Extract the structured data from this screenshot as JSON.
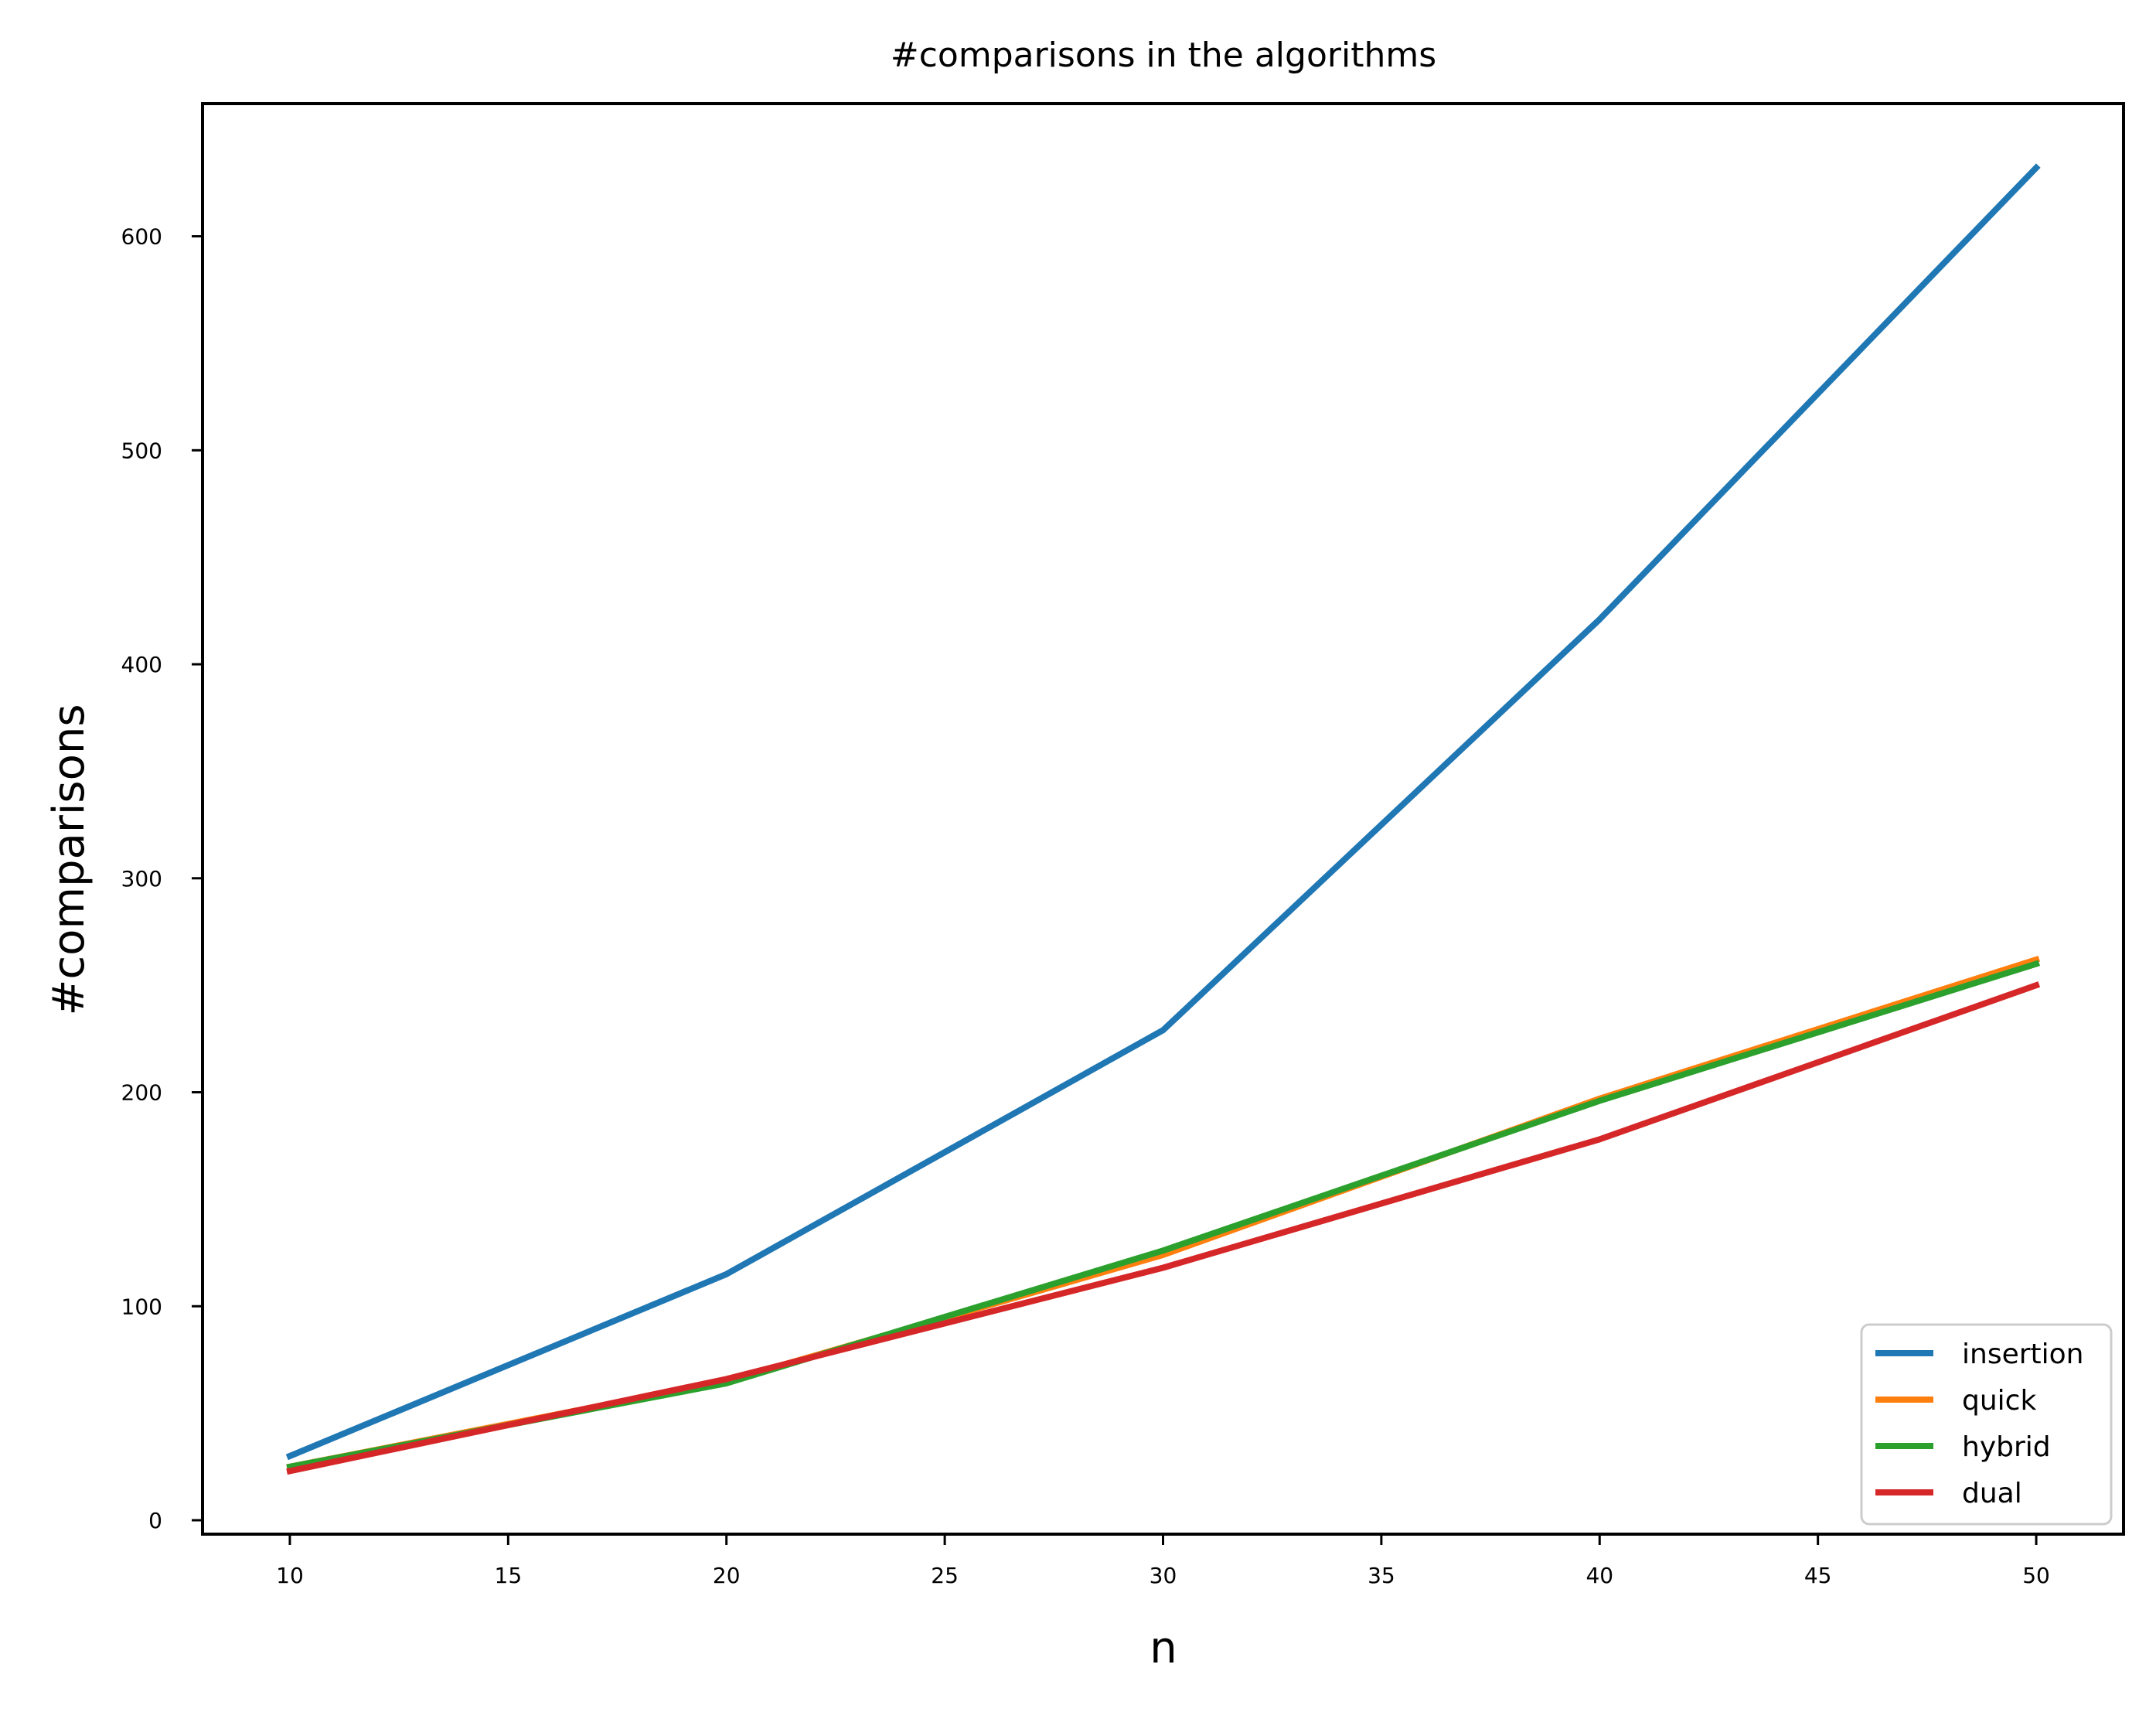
{
  "chart_data": {
    "type": "line",
    "title": "#comparisons in the algorithms",
    "xlabel": "n",
    "ylabel": "#comparisons",
    "x": [
      10,
      20,
      30,
      40,
      50
    ],
    "xlim": [
      8,
      52
    ],
    "ylim": [
      -6.5,
      662
    ],
    "xticks": [
      10,
      15,
      20,
      25,
      30,
      35,
      40,
      45,
      50
    ],
    "yticks": [
      0,
      100,
      200,
      300,
      400,
      500,
      600
    ],
    "grid": false,
    "legend_position": "bottom-right",
    "series": [
      {
        "name": "insertion",
        "color": "#1f77b4",
        "values": [
          30,
          115,
          229,
          421,
          632
        ]
      },
      {
        "name": "quick",
        "color": "#ff7f0e",
        "values": [
          25,
          65,
          124,
          197,
          262
        ]
      },
      {
        "name": "hybrid",
        "color": "#2ca02c",
        "values": [
          25,
          64,
          126,
          196,
          260
        ]
      },
      {
        "name": "dual",
        "color": "#d62728",
        "values": [
          23,
          66,
          118,
          178,
          250
        ]
      }
    ]
  }
}
